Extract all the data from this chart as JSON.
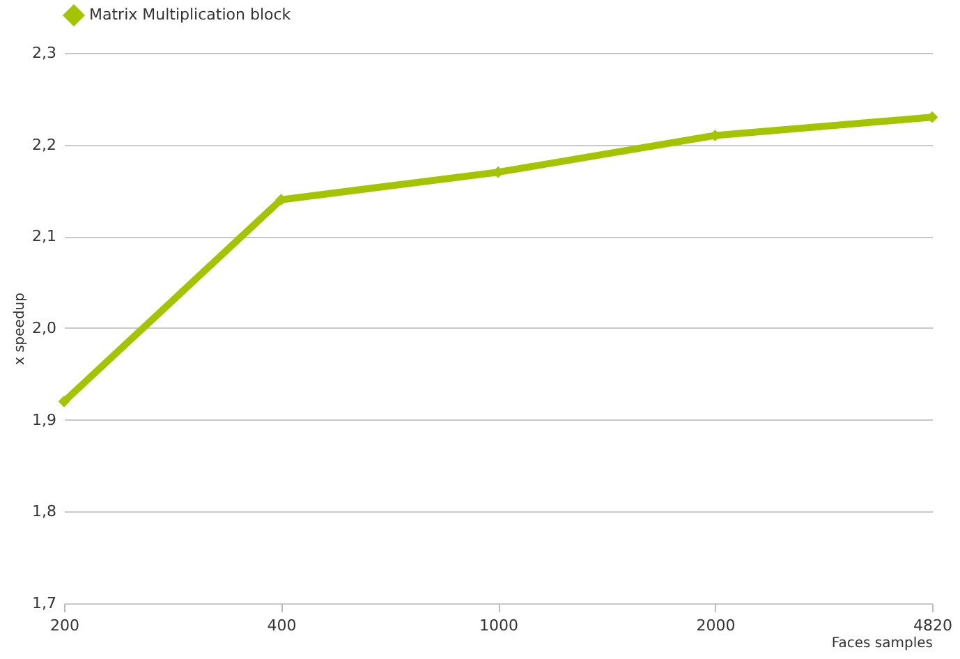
{
  "chart_data": {
    "type": "line",
    "xlabel": "Faces samples",
    "ylabel": "x speedup",
    "categories": [
      "200",
      "400",
      "1000",
      "2000",
      "4820"
    ],
    "series": [
      {
        "name": "Matrix Multiplication block",
        "color": "#a4c400",
        "values": [
          1.92,
          2.14,
          2.17,
          2.21,
          2.23
        ]
      }
    ],
    "ylim": [
      1.7,
      2.3
    ],
    "yticks": [
      {
        "value": 1.7,
        "label": "1,7"
      },
      {
        "value": 1.8,
        "label": "1,8"
      },
      {
        "value": 1.9,
        "label": "1,9"
      },
      {
        "value": 2.0,
        "label": "2,0"
      },
      {
        "value": 2.1,
        "label": "2,1"
      },
      {
        "value": 2.2,
        "label": "2,2"
      },
      {
        "value": 2.3,
        "label": "2,3"
      }
    ],
    "grid": "y",
    "legend": "top",
    "marker": "diamond",
    "line_style": "solid"
  }
}
